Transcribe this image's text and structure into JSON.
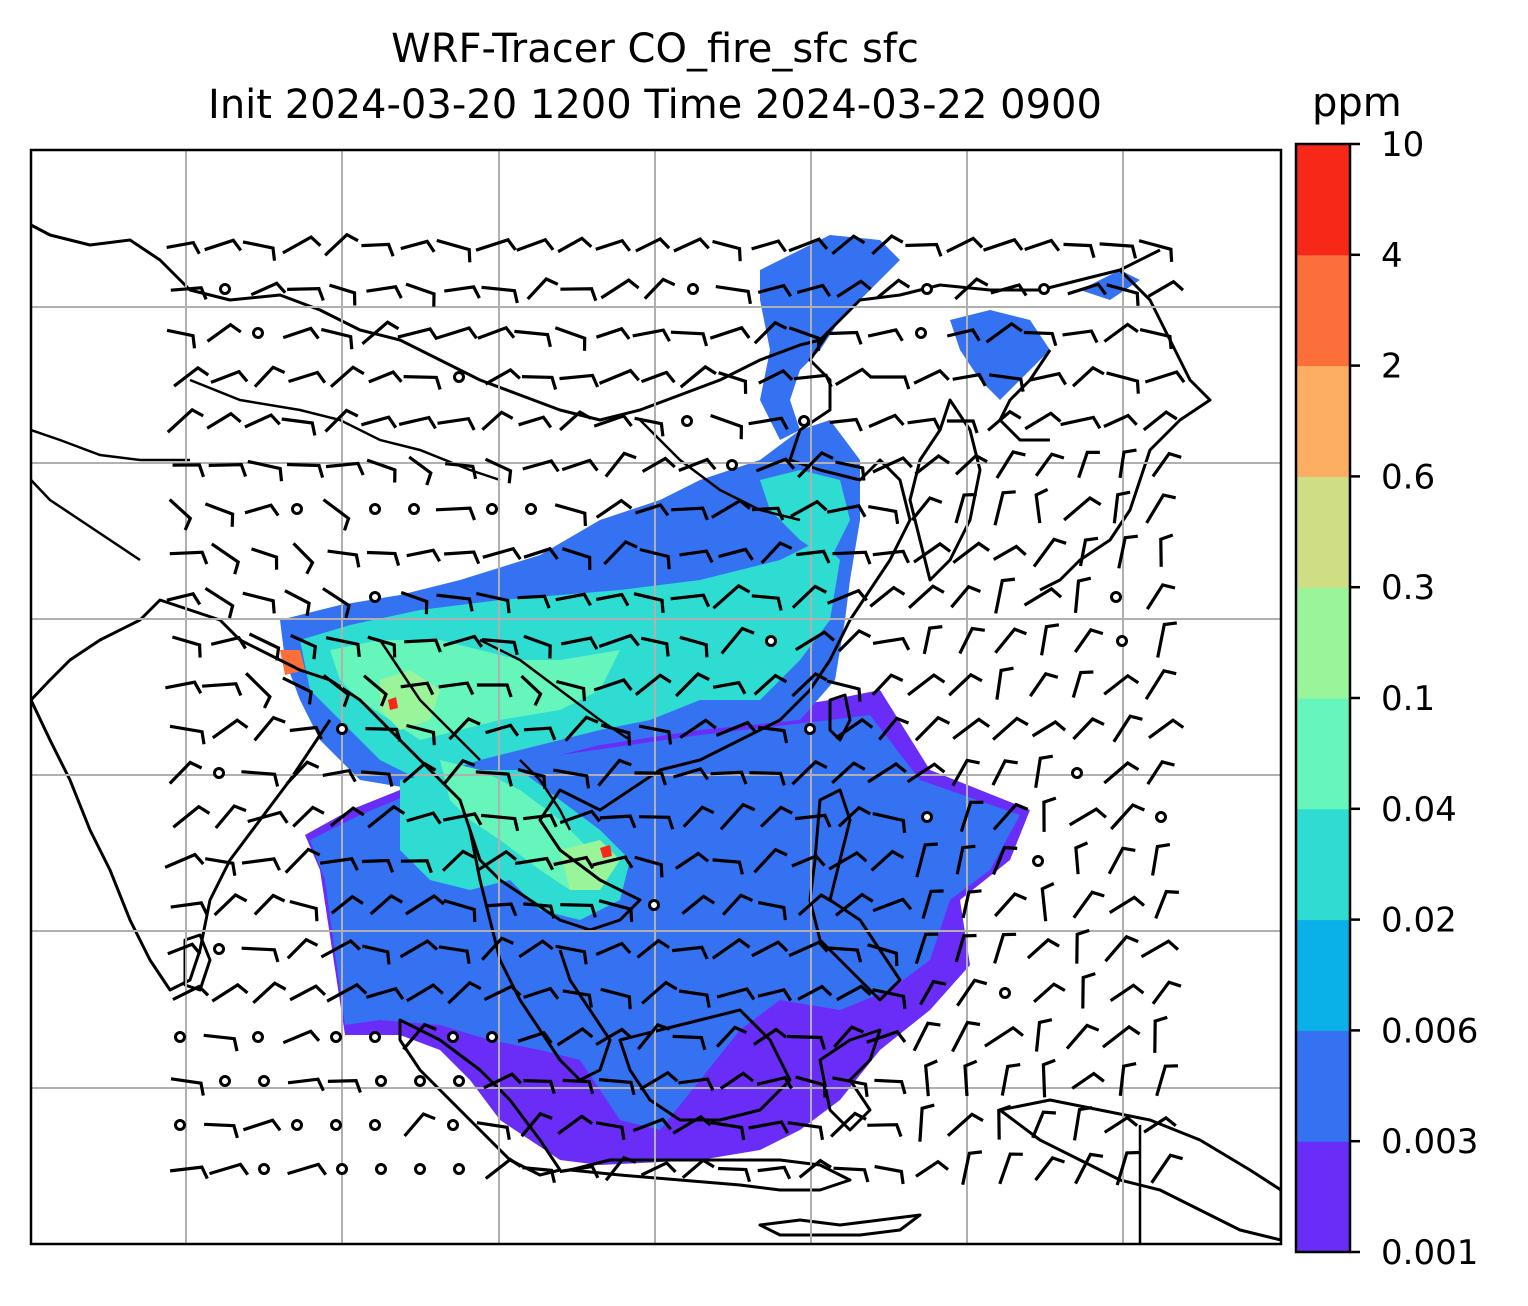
{
  "title": {
    "line1": "WRF-Tracer CO_fire_sfc sfc",
    "line2": "Init 2024-03-20 1200 Time 2024-03-22 0900"
  },
  "colorbar": {
    "unit": "ppm",
    "tick_labels": [
      "0.001",
      "0.003",
      "0.006",
      "0.02",
      "0.04",
      "0.1",
      "0.3",
      "0.6",
      "2",
      "4",
      "10"
    ],
    "colors": [
      "#6a2cf7",
      "#3572f2",
      "#0ab0e8",
      "#2fdcd2",
      "#66f5bb",
      "#9af59a",
      "#cfde84",
      "#fdae63",
      "#fd6f3a",
      "#f72818"
    ]
  },
  "map": {
    "field": "CO_fire_sfc",
    "gridlines": true,
    "wind_barbs": true
  }
}
